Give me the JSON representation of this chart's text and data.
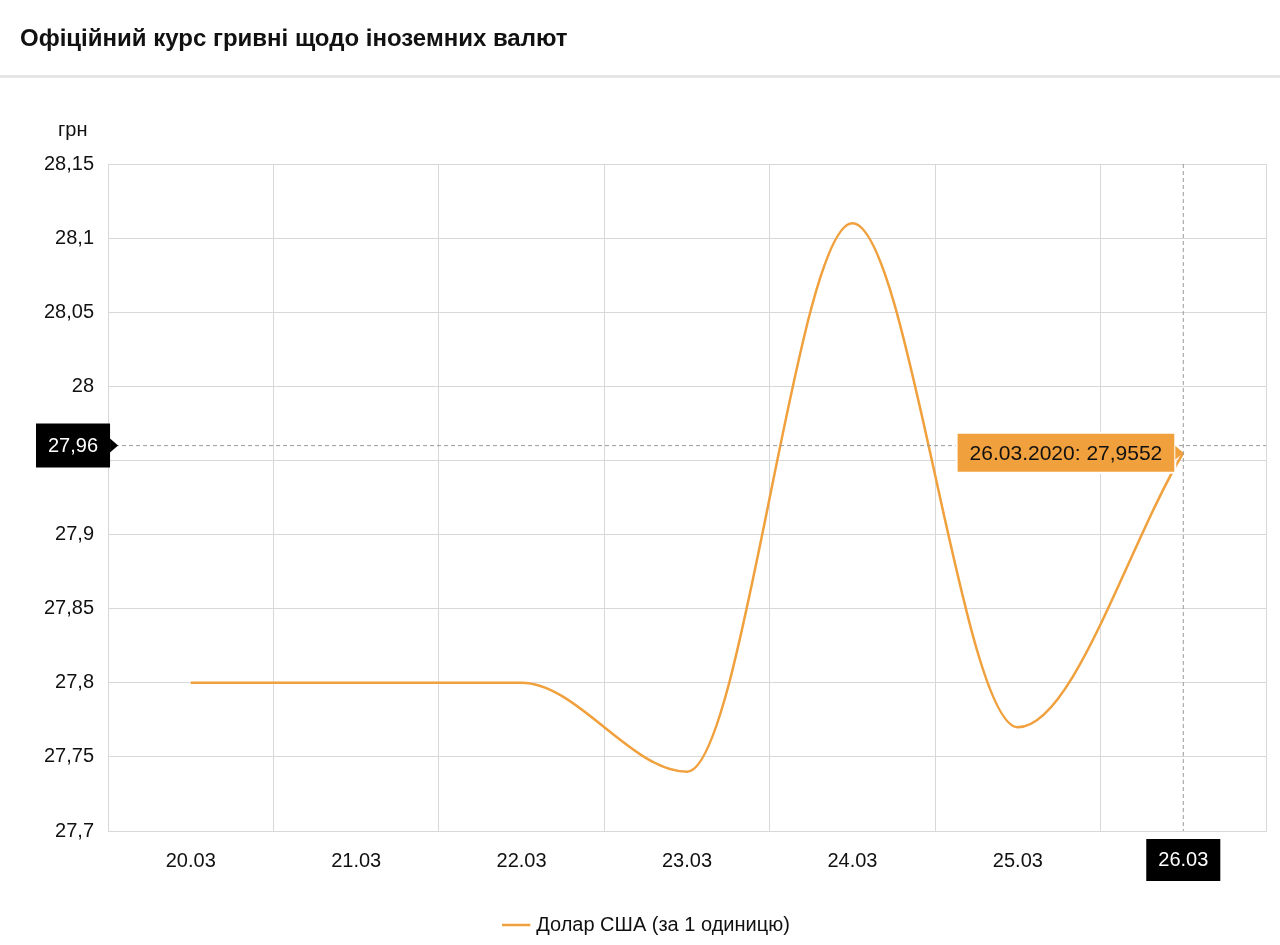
{
  "chart_data": {
    "type": "line",
    "title": "Офіційний курс гривні щодо іноземних валют",
    "ylabel": "грн",
    "categories": [
      "20.03",
      "21.03",
      "22.03",
      "23.03",
      "24.03",
      "25.03",
      "26.03"
    ],
    "series": [
      {
        "name": "Долар США (за 1 одиницю)",
        "color": "#f0a03c",
        "values": [
          27.8,
          27.8,
          27.8,
          27.74,
          28.11,
          27.77,
          27.9552
        ]
      }
    ],
    "ylim": [
      27.7,
      28.15
    ],
    "yticks": [
      {
        "value": 27.7,
        "label": "27,7"
      },
      {
        "value": 27.75,
        "label": "27,75"
      },
      {
        "value": 27.8,
        "label": "27,8"
      },
      {
        "value": 27.85,
        "label": "27,85"
      },
      {
        "value": 27.9,
        "label": "27,9"
      },
      {
        "value": 27.95,
        "label": null
      },
      {
        "value": 28,
        "label": "28"
      },
      {
        "value": 28.05,
        "label": "28,05"
      },
      {
        "value": 28.1,
        "label": "28,1"
      },
      {
        "value": 28.15,
        "label": "28,15"
      }
    ],
    "grid": true,
    "legend": "bottom",
    "marker": "none",
    "line_style": "solid",
    "ref_lines": [
      {
        "axis": "y",
        "value": 27.96,
        "label": "27,96"
      },
      {
        "axis": "x",
        "value": "26.03",
        "label": "26.03"
      }
    ],
    "annotations": [
      {
        "text": "26.03.2020: 27,9552",
        "x": "26.03",
        "y": 27.9552
      }
    ]
  }
}
